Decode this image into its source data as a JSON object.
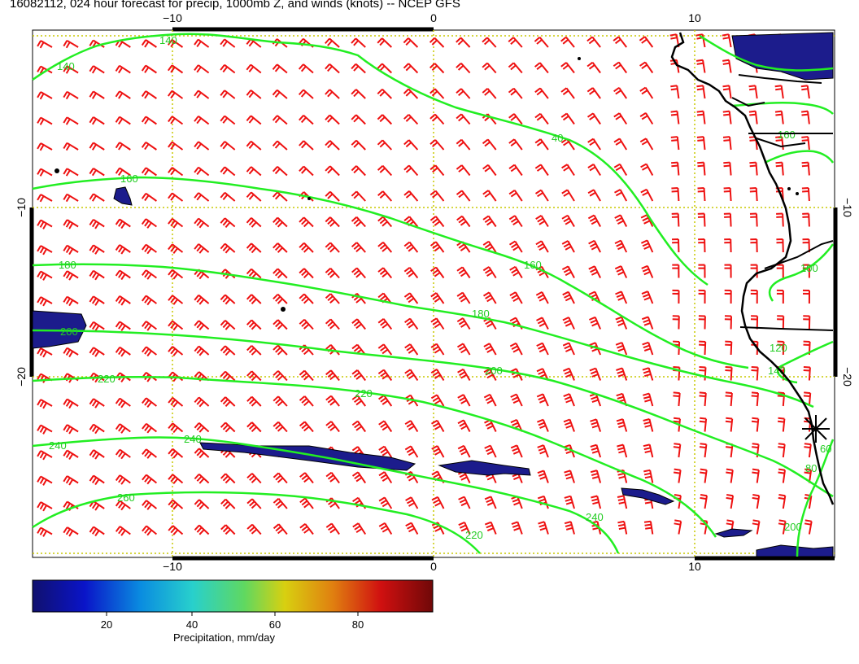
{
  "title": "16082112, 024 hour forecast for precip, 1000mb Z, and winds (knots) -- NCEP GFS",
  "axes": {
    "x_ticks": [
      "−10",
      "0",
      "10"
    ],
    "y_ticks": [
      "−10",
      "−20"
    ]
  },
  "contour_labels": [
    "140",
    "140",
    "40",
    "160",
    "180",
    "40",
    "160",
    "180",
    "200",
    "200",
    "220",
    "220",
    "240",
    "240",
    "260",
    "240",
    "220",
    "200",
    "80",
    "100",
    "120",
    "140",
    "160",
    "100",
    "80",
    "60"
  ],
  "colorbar": {
    "label": "Precipitation, mm/day",
    "ticks": [
      "20",
      "40",
      "60",
      "80"
    ],
    "colors": [
      "#10106e",
      "#0a14c8",
      "#0a8ce0",
      "#28d0cc",
      "#60d860",
      "#d8d010",
      "#e08010",
      "#d01010",
      "#700808"
    ]
  },
  "colors": {
    "contour": "#22ee22",
    "contour_label": "#22cc22",
    "barb": "#ee1111",
    "precip_fill": "#1c1c8c",
    "grid": "#c8c800",
    "coast": "#000000"
  }
}
